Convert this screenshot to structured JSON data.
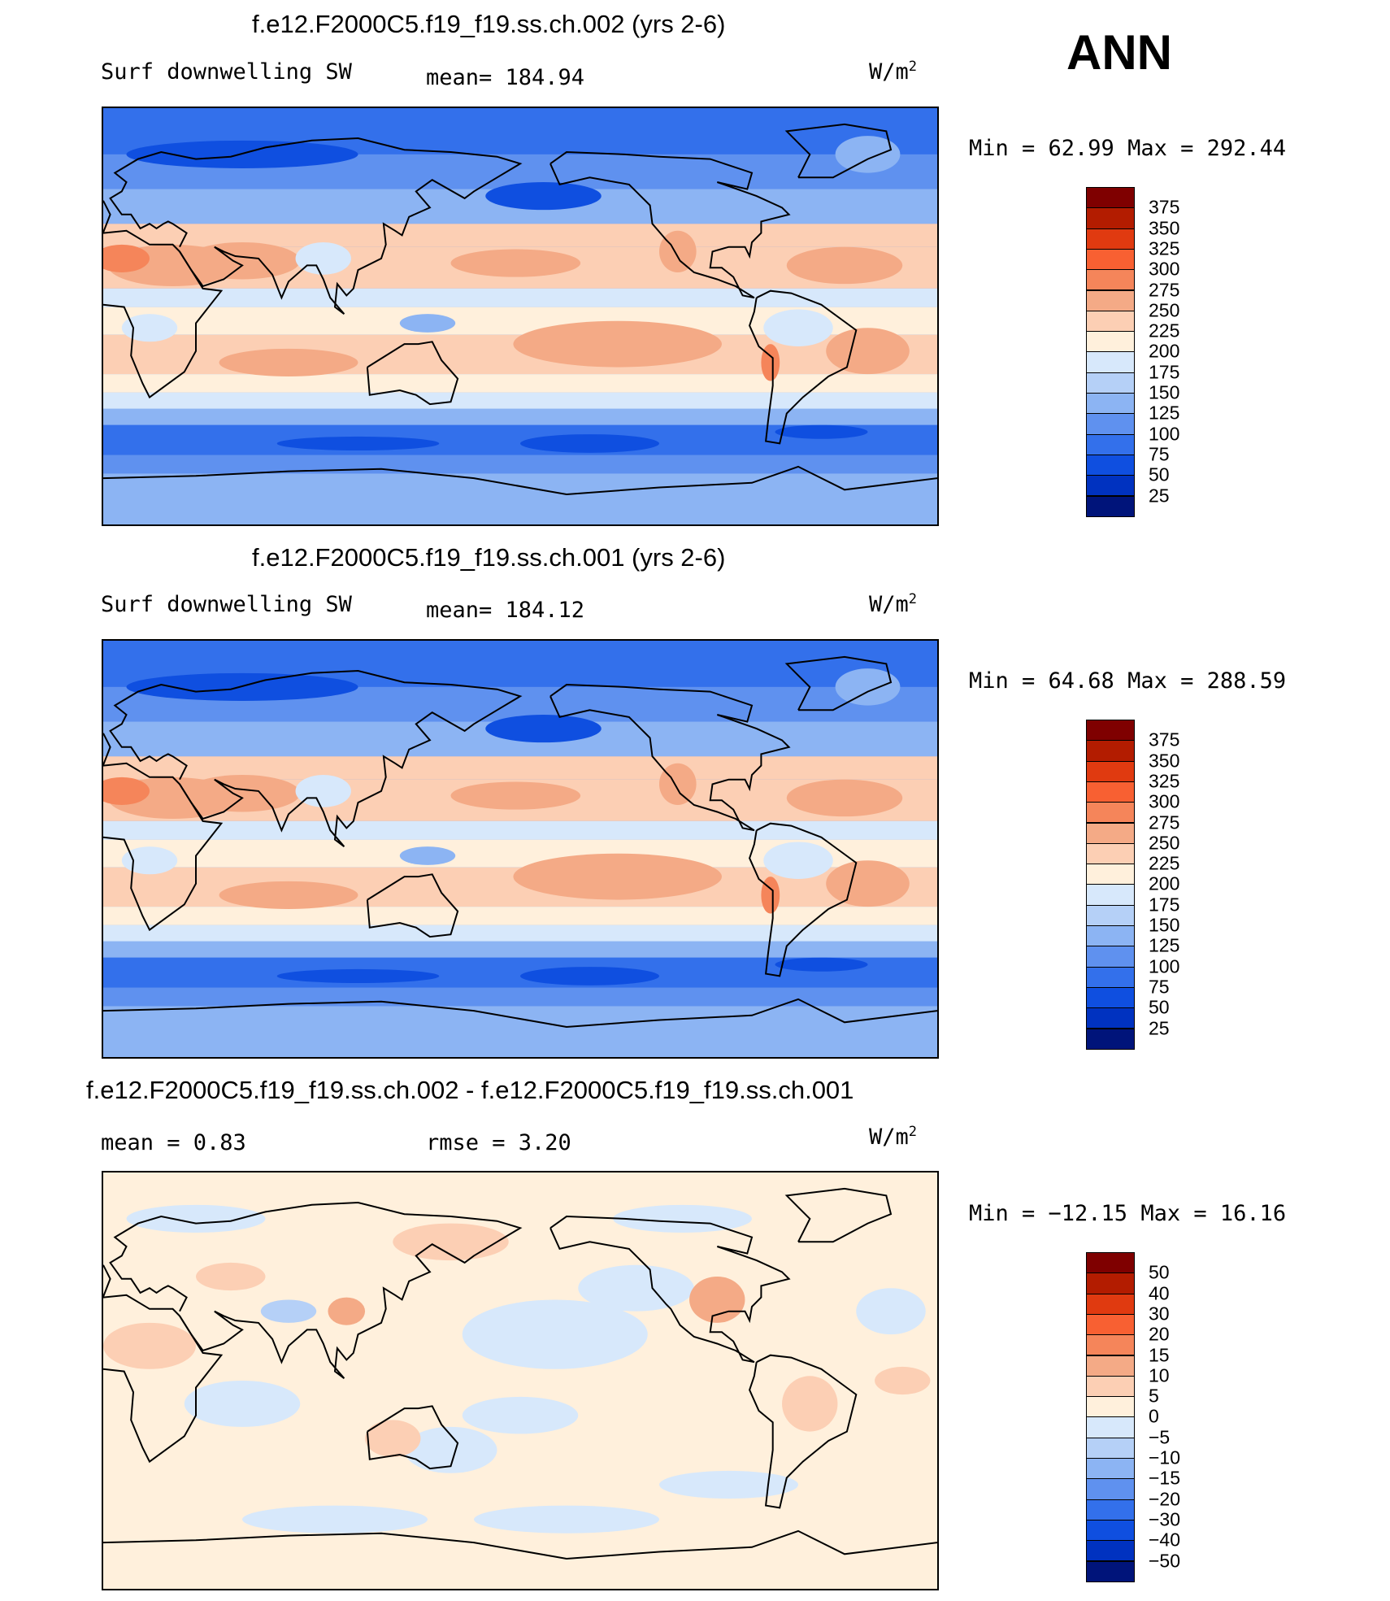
{
  "season": "ANN",
  "panels": [
    {
      "title": "f.e12.F2000C5.f19_f19.ss.ch.002 (yrs 2-6)",
      "left_label": "Surf downwelling SW",
      "center_label": "mean= 184.94",
      "units": "W/m",
      "units_sup": "2",
      "minmax": "Min =   62.99 Max = 292.44",
      "levels": [
        "375",
        "350",
        "325",
        "300",
        "275",
        "250",
        "225",
        "200",
        "175",
        "150",
        "125",
        "100",
        "75",
        "50",
        "25"
      ],
      "colors": [
        "#7f0000",
        "#b31c00",
        "#e03a10",
        "#f86032",
        "#f5855a",
        "#f4aa86",
        "#fccfb4",
        "#fff0dc",
        "#d7e8fb",
        "#b5d0f7",
        "#8cb4f3",
        "#5f91ef",
        "#3370eb",
        "#0f4fe0",
        "#0032c0",
        "#00147a"
      ],
      "field": "mean"
    },
    {
      "title": "f.e12.F2000C5.f19_f19.ss.ch.001 (yrs 2-6)",
      "left_label": "Surf downwelling SW",
      "center_label": "mean= 184.12",
      "units": "W/m",
      "units_sup": "2",
      "minmax": "Min =   64.68 Max = 288.59",
      "levels": [
        "375",
        "350",
        "325",
        "300",
        "275",
        "250",
        "225",
        "200",
        "175",
        "150",
        "125",
        "100",
        "75",
        "50",
        "25"
      ],
      "colors": [
        "#7f0000",
        "#b31c00",
        "#e03a10",
        "#f86032",
        "#f5855a",
        "#f4aa86",
        "#fccfb4",
        "#fff0dc",
        "#d7e8fb",
        "#b5d0f7",
        "#8cb4f3",
        "#5f91ef",
        "#3370eb",
        "#0f4fe0",
        "#0032c0",
        "#00147a"
      ],
      "field": "mean"
    },
    {
      "title": "f.e12.F2000C5.f19_f19.ss.ch.002 - f.e12.F2000C5.f19_f19.ss.ch.001",
      "left_label": "mean =    0.83",
      "center_label": "rmse =    3.20",
      "units": "W/m",
      "units_sup": "2",
      "minmax": "Min = −12.15 Max =   16.16",
      "levels": [
        "50",
        "40",
        "30",
        "20",
        "15",
        "10",
        "5",
        "0",
        "−5",
        "−10",
        "−15",
        "−20",
        "−30",
        "−40",
        "−50"
      ],
      "colors": [
        "#7f0000",
        "#b31c00",
        "#e03a10",
        "#f86032",
        "#f5855a",
        "#f4aa86",
        "#fccfb4",
        "#fff0dc",
        "#d7e8fb",
        "#b5d0f7",
        "#8cb4f3",
        "#5f91ef",
        "#3370eb",
        "#0f4fe0",
        "#0032c0",
        "#00147a"
      ],
      "field": "diff"
    }
  ]
}
